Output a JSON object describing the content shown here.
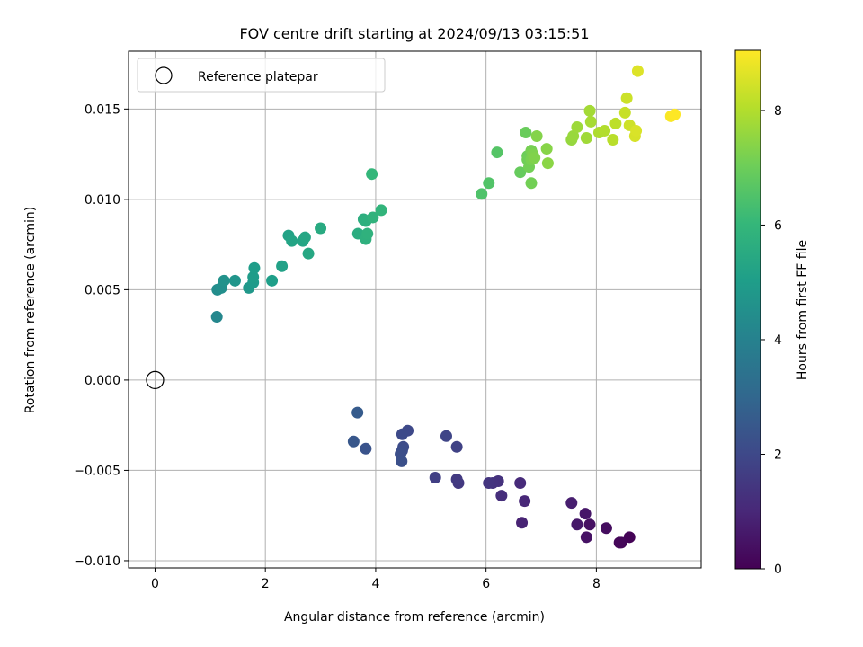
{
  "chart_data": {
    "type": "scatter",
    "title": "FOV centre drift starting at 2024/09/13 03:15:51",
    "xlabel": "Angular distance from reference (arcmin)",
    "ylabel": "Rotation from reference (arcmin)",
    "xlim": [
      -0.48,
      9.9
    ],
    "ylim": [
      -0.0104,
      0.0182
    ],
    "xticks": [
      0,
      2,
      4,
      6,
      8
    ],
    "xtick_labels": [
      "0",
      "2",
      "4",
      "6",
      "8"
    ],
    "yticks": [
      -0.01,
      -0.005,
      0,
      0.005,
      0.01,
      0.015
    ],
    "ytick_labels": [
      "−0.010",
      "−0.005",
      "0.000",
      "0.005",
      "0.010",
      "0.015"
    ],
    "grid": true,
    "legend": {
      "position": "upper-left",
      "entries": [
        "Reference platepar"
      ]
    },
    "reference_point": {
      "x": 0,
      "y": 0
    },
    "colorbar": {
      "label": "Hours from first FF file",
      "colormap": "viridis",
      "range": [
        0,
        9.05
      ],
      "ticks": [
        0,
        2,
        4,
        6,
        8
      ],
      "tick_labels": [
        "0",
        "2",
        "4",
        "6",
        "8"
      ],
      "stops": [
        "#440154",
        "#482878",
        "#3e4989",
        "#31688e",
        "#26828e",
        "#1f9e89",
        "#35b779",
        "#6ece58",
        "#b5de2b",
        "#fde725"
      ]
    },
    "points": [
      [
        8.6,
        -0.0087,
        0.05
      ],
      [
        8.45,
        -0.009,
        0.1
      ],
      [
        8.42,
        -0.009,
        0.15
      ],
      [
        8.18,
        -0.0082,
        0.3
      ],
      [
        7.88,
        -0.008,
        0.4
      ],
      [
        7.82,
        -0.0087,
        0.45
      ],
      [
        7.8,
        -0.0074,
        0.55
      ],
      [
        7.65,
        -0.008,
        0.6
      ],
      [
        7.55,
        -0.0068,
        0.75
      ],
      [
        6.65,
        -0.0079,
        0.9
      ],
      [
        6.7,
        -0.0067,
        1.0
      ],
      [
        6.62,
        -0.0057,
        1.1
      ],
      [
        6.28,
        -0.0064,
        1.2
      ],
      [
        6.22,
        -0.0056,
        1.3
      ],
      [
        6.12,
        -0.0057,
        1.35
      ],
      [
        6.05,
        -0.0057,
        1.4
      ],
      [
        5.5,
        -0.0057,
        1.5
      ],
      [
        5.47,
        -0.0055,
        1.55
      ],
      [
        5.08,
        -0.0054,
        1.7
      ],
      [
        5.47,
        -0.0037,
        1.8
      ],
      [
        5.28,
        -0.0031,
        1.9
      ],
      [
        4.58,
        -0.0028,
        2.0
      ],
      [
        4.48,
        -0.003,
        2.05
      ],
      [
        4.5,
        -0.0037,
        2.1
      ],
      [
        4.48,
        -0.0039,
        2.15
      ],
      [
        4.45,
        -0.0041,
        2.2
      ],
      [
        4.47,
        -0.0045,
        2.25
      ],
      [
        3.82,
        -0.0038,
        2.35
      ],
      [
        3.6,
        -0.0034,
        2.45
      ],
      [
        3.67,
        -0.0018,
        2.6
      ],
      [
        1.12,
        0.0035,
        4.2
      ],
      [
        1.13,
        0.005,
        4.4
      ],
      [
        1.2,
        0.0051,
        4.5
      ],
      [
        1.25,
        0.0055,
        4.6
      ],
      [
        1.45,
        0.0055,
        4.7
      ],
      [
        1.7,
        0.0051,
        4.8
      ],
      [
        1.78,
        0.0054,
        4.9
      ],
      [
        1.78,
        0.0057,
        4.95
      ],
      [
        1.8,
        0.0062,
        5.0
      ],
      [
        2.12,
        0.0055,
        5.05
      ],
      [
        2.3,
        0.0063,
        5.15
      ],
      [
        2.42,
        0.008,
        5.2
      ],
      [
        2.48,
        0.0077,
        5.25
      ],
      [
        2.68,
        0.0077,
        5.3
      ],
      [
        2.72,
        0.0079,
        5.35
      ],
      [
        2.78,
        0.007,
        5.4
      ],
      [
        3.0,
        0.0084,
        5.5
      ],
      [
        3.68,
        0.0081,
        5.6
      ],
      [
        3.78,
        0.0089,
        5.65
      ],
      [
        3.82,
        0.0088,
        5.7
      ],
      [
        3.82,
        0.0078,
        5.75
      ],
      [
        3.85,
        0.0081,
        5.8
      ],
      [
        3.95,
        0.009,
        5.85
      ],
      [
        4.1,
        0.0094,
        5.9
      ],
      [
        3.93,
        0.0114,
        6.0
      ],
      [
        5.92,
        0.0103,
        6.5
      ],
      [
        6.05,
        0.0109,
        6.55
      ],
      [
        6.2,
        0.0126,
        6.6
      ],
      [
        6.62,
        0.0115,
        6.9
      ],
      [
        6.72,
        0.0137,
        6.95
      ],
      [
        6.75,
        0.0124,
        7.0
      ],
      [
        6.75,
        0.0122,
        7.05
      ],
      [
        6.78,
        0.0118,
        7.1
      ],
      [
        6.82,
        0.0109,
        7.1
      ],
      [
        6.82,
        0.0127,
        7.15
      ],
      [
        6.82,
        0.0122,
        7.2
      ],
      [
        6.85,
        0.0125,
        7.25
      ],
      [
        6.88,
        0.0123,
        7.3
      ],
      [
        6.92,
        0.0135,
        7.35
      ],
      [
        7.1,
        0.0128,
        7.4
      ],
      [
        7.12,
        0.012,
        7.45
      ],
      [
        7.55,
        0.0133,
        7.6
      ],
      [
        7.58,
        0.0135,
        7.65
      ],
      [
        7.65,
        0.014,
        7.7
      ],
      [
        7.82,
        0.0134,
        7.75
      ],
      [
        7.88,
        0.0149,
        7.8
      ],
      [
        7.9,
        0.0143,
        7.85
      ],
      [
        8.05,
        0.0137,
        7.95
      ],
      [
        8.15,
        0.0138,
        8.0
      ],
      [
        8.3,
        0.0133,
        8.1
      ],
      [
        8.35,
        0.0142,
        8.15
      ],
      [
        8.52,
        0.0148,
        8.3
      ],
      [
        8.55,
        0.0156,
        8.35
      ],
      [
        8.6,
        0.0141,
        8.4
      ],
      [
        8.7,
        0.0135,
        8.5
      ],
      [
        8.72,
        0.0138,
        8.55
      ],
      [
        8.75,
        0.0171,
        8.6
      ],
      [
        9.35,
        0.0146,
        9.0
      ],
      [
        9.42,
        0.0147,
        9.05
      ]
    ]
  }
}
